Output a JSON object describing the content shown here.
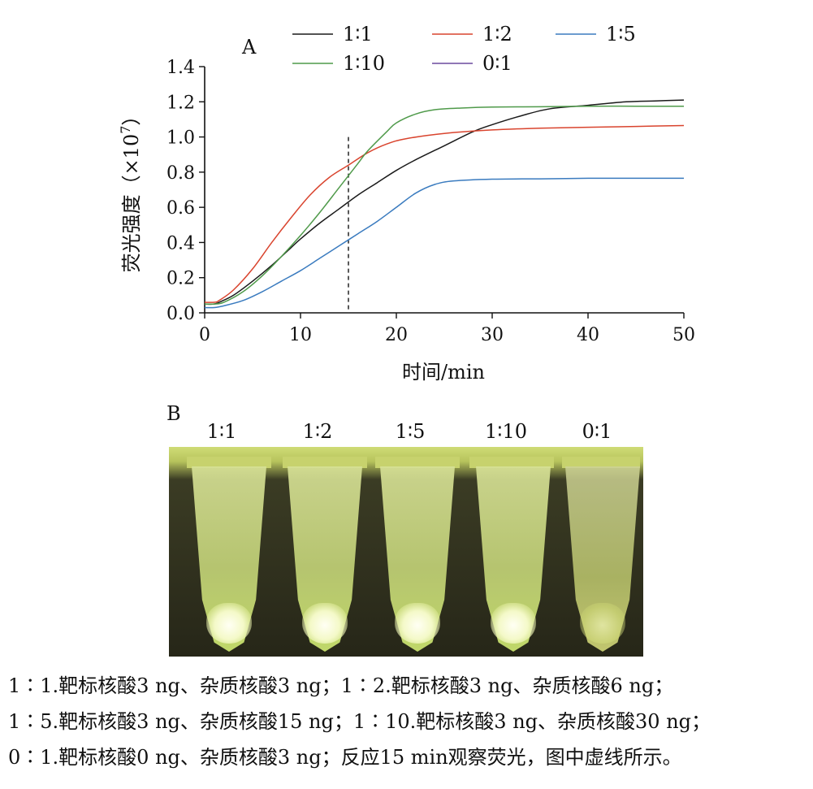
{
  "chart_data": {
    "type": "line",
    "panel_label": "A",
    "xlabel": "时间/min",
    "ylabel_main": "荧光强度（×10",
    "ylabel_exp": "7",
    "ylabel_close": "）",
    "xlim": [
      0,
      50
    ],
    "ylim": [
      0.0,
      1.4
    ],
    "xticks": [
      0,
      10,
      20,
      30,
      40,
      50
    ],
    "yticks": [
      "0.0",
      "0.2",
      "0.4",
      "0.6",
      "0.8",
      "1.0",
      "1.2",
      "1.4"
    ],
    "ytick_values": [
      0.0,
      0.2,
      0.4,
      0.6,
      0.8,
      1.0,
      1.2,
      1.4
    ],
    "dashed_line_x": 15,
    "legend_position": "top",
    "grid": false,
    "series": [
      {
        "name": "1∶1",
        "color": "#1a1a1a",
        "x": [
          0,
          1,
          1.5,
          3,
          5,
          7,
          9,
          10,
          12,
          14,
          16,
          18,
          20,
          22,
          25,
          28,
          30,
          33,
          36,
          40,
          44,
          47,
          50
        ],
        "y": [
          0.05,
          0.05,
          0.06,
          0.1,
          0.18,
          0.27,
          0.37,
          0.42,
          0.51,
          0.59,
          0.67,
          0.74,
          0.81,
          0.87,
          0.95,
          1.03,
          1.07,
          1.12,
          1.16,
          1.18,
          1.2,
          1.205,
          1.21
        ]
      },
      {
        "name": "1∶2",
        "color": "#d9442e",
        "x": [
          0,
          1,
          1.5,
          3,
          5,
          7,
          9,
          11,
          13,
          15,
          17,
          19,
          21,
          25,
          30,
          35,
          40,
          45,
          50
        ],
        "y": [
          0.06,
          0.06,
          0.07,
          0.13,
          0.25,
          0.4,
          0.54,
          0.67,
          0.77,
          0.84,
          0.91,
          0.96,
          0.99,
          1.02,
          1.04,
          1.05,
          1.055,
          1.06,
          1.065
        ]
      },
      {
        "name": "1∶5",
        "color": "#3a7bbf",
        "x": [
          0,
          1,
          2,
          4,
          6,
          8,
          10,
          12,
          14,
          16,
          18,
          20,
          22,
          24,
          26,
          30,
          35,
          40,
          45,
          50
        ],
        "y": [
          0.03,
          0.03,
          0.04,
          0.07,
          0.12,
          0.18,
          0.24,
          0.31,
          0.38,
          0.45,
          0.52,
          0.6,
          0.68,
          0.73,
          0.75,
          0.76,
          0.762,
          0.765,
          0.765,
          0.765
        ]
      },
      {
        "name": "1∶10",
        "color": "#4f9a4a",
        "x": [
          0,
          1,
          2,
          4,
          6,
          8,
          10,
          12,
          14,
          16,
          17,
          19,
          20,
          22,
          24,
          27,
          30,
          35,
          40,
          45,
          50
        ],
        "y": [
          0.05,
          0.05,
          0.06,
          0.12,
          0.21,
          0.32,
          0.44,
          0.57,
          0.71,
          0.85,
          0.92,
          1.03,
          1.08,
          1.13,
          1.155,
          1.165,
          1.17,
          1.172,
          1.175,
          1.175,
          1.175
        ]
      },
      {
        "name": "0∶1",
        "color": "#6b4a9e",
        "x": [],
        "y": []
      }
    ]
  },
  "panel_b": {
    "label": "B",
    "tube_labels": [
      "1∶1",
      "1∶2",
      "1∶5",
      "1∶10",
      "0∶1"
    ]
  },
  "caption": {
    "line1": "1∶1.靶标核酸3 ng、杂质核酸3 ng；1∶2.靶标核酸3 ng、杂质核酸6 ng；",
    "line2": "1∶5.靶标核酸3 ng、杂质核酸15 ng；1∶10.靶标核酸3 ng、杂质核酸30 ng；",
    "line3": "0∶1.靶标核酸0 ng、杂质核酸3 ng；反应15 min观察荧光，图中虚线所示。"
  }
}
